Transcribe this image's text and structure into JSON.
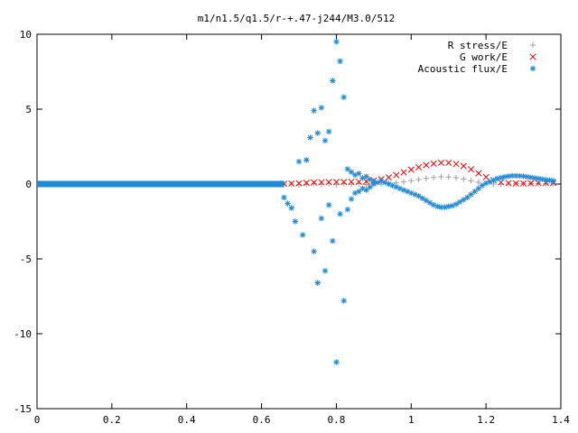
{
  "chart_data": {
    "type": "scatter",
    "title": "m1/n1.5/q1.5/r-+.47-j244/M3.0/512",
    "xlabel": "",
    "ylabel": "",
    "xlim": [
      0,
      1.4
    ],
    "ylim": [
      -15,
      10
    ],
    "x_ticks": [
      "0",
      "0.2",
      "0.4",
      "0.6",
      "0.8",
      "1",
      "1.2",
      "1.4"
    ],
    "y_ticks": [
      "10",
      "5",
      "0",
      "-5",
      "-10",
      "-15"
    ],
    "grid": false,
    "legend_position": "top-right",
    "series": [
      {
        "name": "R stress/E",
        "marker": "plus",
        "color": "#a0a0a0",
        "points": [
          [
            0.66,
            0.0
          ],
          [
            0.68,
            0.0
          ],
          [
            0.7,
            -0.05
          ],
          [
            0.72,
            -0.02
          ],
          [
            0.74,
            0.04
          ],
          [
            0.76,
            -0.03
          ],
          [
            0.78,
            0.02
          ],
          [
            0.8,
            -0.04
          ],
          [
            0.82,
            0.03
          ],
          [
            0.84,
            -0.02
          ],
          [
            0.86,
            0.02
          ],
          [
            0.88,
            -0.03
          ],
          [
            0.9,
            0.04
          ],
          [
            0.92,
            0.0
          ],
          [
            0.94,
            0.05
          ],
          [
            0.96,
            0.08
          ],
          [
            0.98,
            0.14
          ],
          [
            1.0,
            0.22
          ],
          [
            1.02,
            0.3
          ],
          [
            1.04,
            0.38
          ],
          [
            1.06,
            0.44
          ],
          [
            1.08,
            0.48
          ],
          [
            1.1,
            0.47
          ],
          [
            1.12,
            0.42
          ],
          [
            1.14,
            0.33
          ],
          [
            1.16,
            0.22
          ],
          [
            1.18,
            0.12
          ],
          [
            1.2,
            0.04
          ],
          [
            1.22,
            0.0
          ],
          [
            1.24,
            -0.02
          ],
          [
            1.26,
            0.0
          ],
          [
            1.28,
            0.02
          ],
          [
            1.3,
            0.02
          ],
          [
            1.32,
            0.03
          ],
          [
            1.34,
            0.03
          ],
          [
            1.36,
            0.03
          ],
          [
            1.38,
            0.02
          ]
        ]
      },
      {
        "name": "G work/E",
        "marker": "cross",
        "color": "#ff0000",
        "points": [
          [
            0.66,
            0.02
          ],
          [
            0.68,
            0.03
          ],
          [
            0.7,
            0.05
          ],
          [
            0.72,
            0.08
          ],
          [
            0.74,
            0.1
          ],
          [
            0.76,
            0.12
          ],
          [
            0.78,
            0.13
          ],
          [
            0.8,
            0.14
          ],
          [
            0.82,
            0.14
          ],
          [
            0.84,
            0.15
          ],
          [
            0.86,
            0.15
          ],
          [
            0.88,
            0.18
          ],
          [
            0.9,
            0.24
          ],
          [
            0.92,
            0.32
          ],
          [
            0.94,
            0.44
          ],
          [
            0.96,
            0.6
          ],
          [
            0.98,
            0.78
          ],
          [
            1.0,
            0.96
          ],
          [
            1.02,
            1.12
          ],
          [
            1.04,
            1.26
          ],
          [
            1.06,
            1.36
          ],
          [
            1.08,
            1.42
          ],
          [
            1.1,
            1.42
          ],
          [
            1.12,
            1.34
          ],
          [
            1.14,
            1.2
          ],
          [
            1.16,
            0.98
          ],
          [
            1.18,
            0.72
          ],
          [
            1.2,
            0.46
          ],
          [
            1.22,
            0.26
          ],
          [
            1.24,
            0.12
          ],
          [
            1.26,
            0.06
          ],
          [
            1.28,
            0.04
          ],
          [
            1.3,
            0.04
          ],
          [
            1.32,
            0.05
          ],
          [
            1.34,
            0.06
          ],
          [
            1.36,
            0.07
          ],
          [
            1.38,
            0.08
          ]
        ]
      },
      {
        "name": "Acoustic flux/E",
        "marker": "star",
        "color": "#1f8ad6",
        "points": [
          [
            0.66,
            -0.9
          ],
          [
            0.67,
            -1.3
          ],
          [
            0.68,
            -1.6
          ],
          [
            0.69,
            -2.5
          ],
          [
            0.7,
            1.5
          ],
          [
            0.71,
            -3.4
          ],
          [
            0.72,
            1.6
          ],
          [
            0.73,
            3.1
          ],
          [
            0.74,
            -4.5
          ],
          [
            0.74,
            4.9
          ],
          [
            0.75,
            3.4
          ],
          [
            0.75,
            -6.6
          ],
          [
            0.76,
            5.1
          ],
          [
            0.76,
            -2.3
          ],
          [
            0.77,
            2.9
          ],
          [
            0.77,
            -5.8
          ],
          [
            0.78,
            -1.4
          ],
          [
            0.78,
            3.5
          ],
          [
            0.79,
            6.9
          ],
          [
            0.79,
            -3.8
          ],
          [
            0.8,
            9.5
          ],
          [
            0.8,
            -11.9
          ],
          [
            0.81,
            8.2
          ],
          [
            0.81,
            -2.0
          ],
          [
            0.82,
            5.8
          ],
          [
            0.82,
            -7.8
          ],
          [
            0.83,
            1.0
          ],
          [
            0.83,
            -1.7
          ],
          [
            0.84,
            0.8
          ],
          [
            0.84,
            -1.0
          ],
          [
            0.85,
            0.6
          ],
          [
            0.85,
            -0.6
          ],
          [
            0.86,
            0.7
          ],
          [
            0.86,
            -0.5
          ],
          [
            0.87,
            0.4
          ],
          [
            0.87,
            -0.3
          ],
          [
            0.88,
            0.5
          ],
          [
            0.88,
            -0.4
          ],
          [
            0.89,
            0.3
          ],
          [
            0.89,
            -0.2
          ],
          [
            0.9,
            0.2
          ],
          [
            0.9,
            0.0
          ],
          [
            0.91,
            0.1
          ],
          [
            0.92,
            0.2
          ],
          [
            0.93,
            0.1
          ],
          [
            0.94,
            0.0
          ],
          [
            0.95,
            -0.1
          ],
          [
            0.96,
            -0.2
          ],
          [
            0.97,
            -0.3
          ],
          [
            0.98,
            -0.4
          ],
          [
            0.99,
            -0.5
          ],
          [
            1.0,
            -0.6
          ],
          [
            1.01,
            -0.7
          ],
          [
            1.02,
            -0.8
          ],
          [
            1.03,
            -0.95
          ],
          [
            1.04,
            -1.1
          ],
          [
            1.05,
            -1.25
          ],
          [
            1.06,
            -1.4
          ],
          [
            1.07,
            -1.5
          ],
          [
            1.08,
            -1.55
          ],
          [
            1.09,
            -1.55
          ],
          [
            1.1,
            -1.5
          ],
          [
            1.11,
            -1.45
          ],
          [
            1.12,
            -1.35
          ],
          [
            1.13,
            -1.2
          ],
          [
            1.14,
            -1.05
          ],
          [
            1.15,
            -0.9
          ],
          [
            1.16,
            -0.7
          ],
          [
            1.17,
            -0.5
          ],
          [
            1.18,
            -0.3
          ],
          [
            1.19,
            -0.1
          ],
          [
            1.2,
            0.05
          ],
          [
            1.21,
            0.15
          ],
          [
            1.22,
            0.25
          ],
          [
            1.23,
            0.35
          ],
          [
            1.24,
            0.42
          ],
          [
            1.25,
            0.48
          ],
          [
            1.26,
            0.52
          ],
          [
            1.27,
            0.55
          ],
          [
            1.28,
            0.55
          ],
          [
            1.29,
            0.54
          ],
          [
            1.3,
            0.52
          ],
          [
            1.31,
            0.48
          ],
          [
            1.32,
            0.44
          ],
          [
            1.33,
            0.4
          ],
          [
            1.34,
            0.36
          ],
          [
            1.35,
            0.32
          ],
          [
            1.36,
            0.28
          ],
          [
            1.37,
            0.25
          ],
          [
            1.38,
            0.22
          ]
        ],
        "zero_band": [
          0.0,
          0.66
        ]
      }
    ]
  }
}
